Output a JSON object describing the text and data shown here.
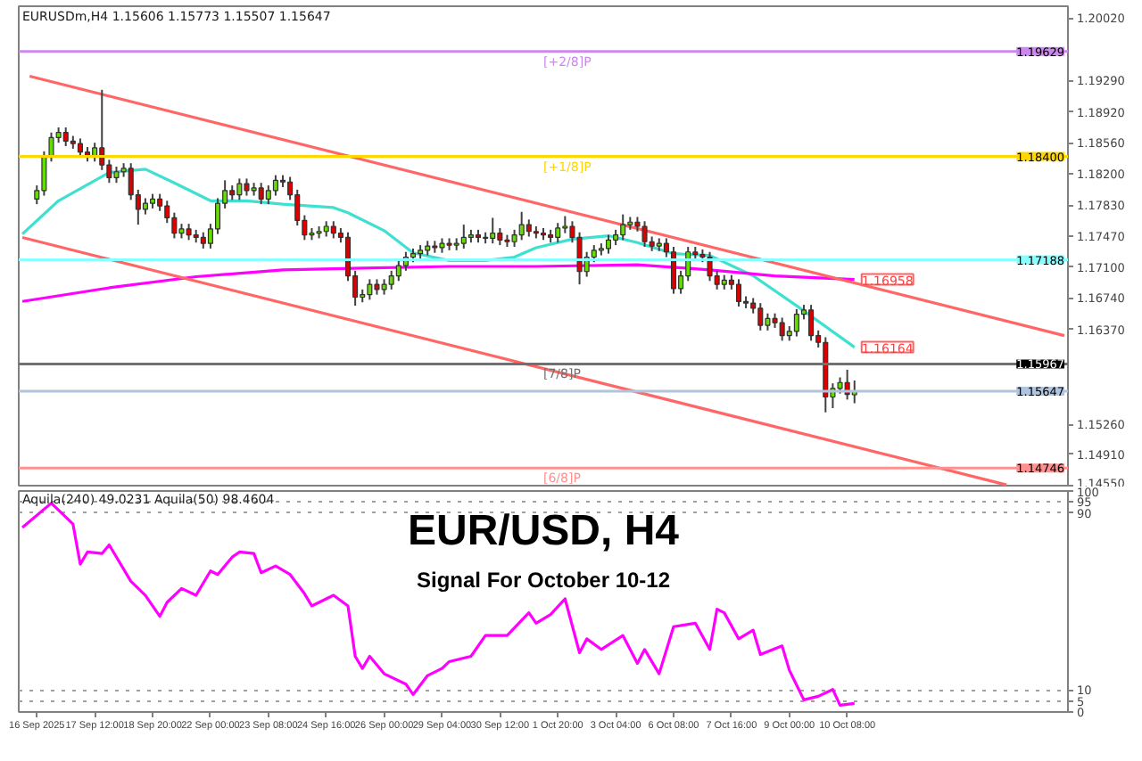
{
  "chart_data": [
    {
      "type": "candlestick",
      "title": "EURUSDm,H4 1.15606 1.15773 1.15507 1.15647",
      "categories": [
        null,
        null,
        null,
        null,
        null,
        null,
        null,
        null,
        null,
        null,
        null,
        null,
        null,
        null,
        null,
        null,
        null,
        null,
        null,
        null,
        null,
        null,
        null,
        null,
        null,
        null,
        null,
        null,
        null,
        null,
        null,
        null,
        null,
        null,
        null,
        null,
        null,
        null,
        null,
        null,
        null,
        null,
        null,
        null,
        null,
        null,
        null,
        null,
        null,
        null,
        null,
        null,
        null,
        null,
        null,
        null,
        null,
        null,
        null,
        null,
        null,
        null,
        null,
        null,
        null,
        null,
        null,
        null,
        null,
        null,
        null,
        null,
        null,
        null,
        null,
        null,
        null,
        null,
        null,
        null,
        null,
        null,
        null,
        null,
        null,
        null,
        null,
        null,
        null,
        null,
        null,
        null,
        null,
        null,
        null,
        null,
        null,
        null,
        null,
        null,
        null,
        null,
        null,
        null,
        null,
        null,
        null,
        null,
        null,
        null,
        null,
        null,
        null,
        null,
        null,
        null,
        null,
        null,
        null,
        null,
        null,
        null,
        null,
        null,
        null,
        null,
        null,
        null,
        null,
        null,
        null,
        null,
        null,
        null,
        null,
        null,
        null,
        null,
        null,
        null,
        null,
        null,
        null,
        null,
        null
      ],
      "ohlc": [
        null,
        null,
        [
          1.179,
          1.1806,
          1.1784,
          1.18
        ],
        [
          1.18,
          1.1846,
          1.1794,
          1.184
        ],
        [
          1.184,
          1.1868,
          1.1834,
          1.1862
        ],
        [
          1.1862,
          1.1874,
          1.1856,
          1.1868
        ],
        [
          1.1868,
          1.1874,
          1.1852,
          1.1858
        ],
        [
          1.1858,
          1.1864,
          1.1849,
          1.1855
        ],
        [
          1.1855,
          1.1861,
          1.1839,
          1.1845
        ],
        [
          1.1845,
          1.1851,
          1.1834,
          1.184
        ],
        [
          1.184,
          1.1856,
          1.1834,
          1.185
        ],
        [
          1.185,
          1.1918,
          1.1824,
          1.183
        ],
        [
          1.183,
          1.1836,
          1.1809,
          1.1815
        ],
        [
          1.1815,
          1.1828,
          1.1809,
          1.1822
        ],
        [
          1.1822,
          1.1832,
          1.1816,
          1.1826
        ],
        [
          1.1826,
          1.1832,
          1.1789,
          1.1795
        ],
        [
          1.1795,
          1.1801,
          1.176,
          1.1778
        ],
        [
          1.1778,
          1.1791,
          1.1772,
          1.1785
        ],
        [
          1.1785,
          1.1796,
          1.1779,
          1.179
        ],
        [
          1.179,
          1.1796,
          1.1776,
          1.1782
        ],
        [
          1.1782,
          1.1788,
          1.1762,
          1.1768
        ],
        [
          1.1768,
          1.1774,
          1.1744,
          1.175
        ],
        [
          1.175,
          1.1761,
          1.1744,
          1.1755
        ],
        [
          1.1755,
          1.1761,
          1.1742,
          1.1748
        ],
        [
          1.1748,
          1.1754,
          1.1739,
          1.1745
        ],
        [
          1.1745,
          1.1751,
          1.1732,
          1.1738
        ],
        [
          1.1738,
          1.1761,
          1.1732,
          1.1755
        ],
        [
          1.1755,
          1.1791,
          1.1749,
          1.1785
        ],
        [
          1.1785,
          1.1812,
          1.1779,
          1.18
        ],
        [
          1.18,
          1.1806,
          1.1789,
          1.1795
        ],
        [
          1.1795,
          1.1814,
          1.1789,
          1.1808
        ],
        [
          1.1808,
          1.1814,
          1.1794,
          1.18
        ],
        [
          1.18,
          1.1809,
          1.1794,
          1.1803
        ],
        [
          1.1803,
          1.1809,
          1.1784,
          1.179
        ],
        [
          1.179,
          1.1806,
          1.1784,
          1.18
        ],
        [
          1.18,
          1.1818,
          1.1794,
          1.1812
        ],
        [
          1.1812,
          1.1818,
          1.1804,
          1.181
        ],
        [
          1.181,
          1.1816,
          1.1789,
          1.1795
        ],
        [
          1.1795,
          1.1801,
          1.1759,
          1.1765
        ],
        [
          1.1765,
          1.1771,
          1.1742,
          1.1748
        ],
        [
          1.1748,
          1.1756,
          1.1742,
          1.175
        ],
        [
          1.175,
          1.1758,
          1.1744,
          1.1752
        ],
        [
          1.1752,
          1.1764,
          1.1746,
          1.1758
        ],
        [
          1.1758,
          1.1764,
          1.1744,
          1.175
        ],
        [
          1.175,
          1.1756,
          1.1739,
          1.1745
        ],
        [
          1.1745,
          1.1751,
          1.1694,
          1.17
        ],
        [
          1.17,
          1.1706,
          1.1665,
          1.1675
        ],
        [
          1.1675,
          1.1684,
          1.1669,
          1.1678
        ],
        [
          1.1678,
          1.1696,
          1.1672,
          1.169
        ],
        [
          1.169,
          1.1696,
          1.1678,
          1.1684
        ],
        [
          1.1684,
          1.1696,
          1.1678,
          1.169
        ],
        [
          1.169,
          1.1706,
          1.1684,
          1.17
        ],
        [
          1.17,
          1.1718,
          1.1694,
          1.1712
        ],
        [
          1.1712,
          1.1728,
          1.1706,
          1.1722
        ],
        [
          1.1722,
          1.1732,
          1.1716,
          1.1726
        ],
        [
          1.1726,
          1.1736,
          1.172,
          1.173
        ],
        [
          1.173,
          1.1741,
          1.1724,
          1.1735
        ],
        [
          1.1735,
          1.1741,
          1.1727,
          1.1733
        ],
        [
          1.1733,
          1.1744,
          1.1727,
          1.1738
        ],
        [
          1.1738,
          1.1744,
          1.173,
          1.1736
        ],
        [
          1.1736,
          1.1744,
          1.173,
          1.1738
        ],
        [
          1.1738,
          1.176,
          1.1732,
          1.1745
        ],
        [
          1.1745,
          1.1754,
          1.1739,
          1.1748
        ],
        [
          1.1748,
          1.1754,
          1.1739,
          1.1745
        ],
        [
          1.1745,
          1.1751,
          1.1738,
          1.1744
        ],
        [
          1.1744,
          1.1768,
          1.1738,
          1.175
        ],
        [
          1.175,
          1.1756,
          1.1736,
          1.1742
        ],
        [
          1.1742,
          1.1748,
          1.1734,
          1.174
        ],
        [
          1.174,
          1.1754,
          1.1734,
          1.1748
        ],
        [
          1.1748,
          1.1775,
          1.1742,
          1.176
        ],
        [
          1.176,
          1.1766,
          1.1746,
          1.1752
        ],
        [
          1.1752,
          1.1758,
          1.1744,
          1.175
        ],
        [
          1.175,
          1.1756,
          1.1742,
          1.1748
        ],
        [
          1.1748,
          1.1754,
          1.1739,
          1.1745
        ],
        [
          1.1745,
          1.1762,
          1.1739,
          1.1756
        ],
        [
          1.1756,
          1.177,
          1.175,
          1.1758
        ],
        [
          1.1758,
          1.1764,
          1.1739,
          1.1745
        ],
        [
          1.1745,
          1.1751,
          1.169,
          1.1705
        ],
        [
          1.1705,
          1.1728,
          1.1699,
          1.1722
        ],
        [
          1.1722,
          1.1736,
          1.1716,
          1.173
        ],
        [
          1.173,
          1.1738,
          1.1724,
          1.1732
        ],
        [
          1.1732,
          1.1748,
          1.1726,
          1.1742
        ],
        [
          1.1742,
          1.1754,
          1.1736,
          1.1748
        ],
        [
          1.1748,
          1.1772,
          1.1742,
          1.176
        ],
        [
          1.176,
          1.1769,
          1.1754,
          1.1763
        ],
        [
          1.1763,
          1.1769,
          1.1752,
          1.1758
        ],
        [
          1.1758,
          1.1764,
          1.1734,
          1.174
        ],
        [
          1.174,
          1.1746,
          1.1729,
          1.1735
        ],
        [
          1.1735,
          1.1744,
          1.1729,
          1.1738
        ],
        [
          1.1738,
          1.1744,
          1.1722,
          1.1728
        ],
        [
          1.1728,
          1.1734,
          1.1679,
          1.1685
        ],
        [
          1.1685,
          1.1706,
          1.1679,
          1.17
        ],
        [
          1.17,
          1.1734,
          1.1694,
          1.1728
        ],
        [
          1.1728,
          1.1734,
          1.1719,
          1.1725
        ],
        [
          1.1725,
          1.1731,
          1.1716,
          1.1722
        ],
        [
          1.1722,
          1.1728,
          1.1694,
          1.17
        ],
        [
          1.17,
          1.1706,
          1.1684,
          1.169
        ],
        [
          1.169,
          1.1701,
          1.1684,
          1.1695
        ],
        [
          1.1695,
          1.1701,
          1.1684,
          1.169
        ],
        [
          1.169,
          1.1696,
          1.1664,
          1.167
        ],
        [
          1.167,
          1.1676,
          1.1662,
          1.1668
        ],
        [
          1.1668,
          1.1674,
          1.1656,
          1.1662
        ],
        [
          1.1662,
          1.1668,
          1.1636,
          1.1642
        ],
        [
          1.1642,
          1.1656,
          1.1636,
          1.165
        ],
        [
          1.165,
          1.1656,
          1.1639,
          1.1645
        ],
        [
          1.1645,
          1.1651,
          1.1624,
          1.163
        ],
        [
          1.163,
          1.1641,
          1.1624,
          1.1635
        ],
        [
          1.1635,
          1.1661,
          1.1629,
          1.1655
        ],
        [
          1.1655,
          1.1666,
          1.1649,
          1.166
        ],
        [
          1.166,
          1.1666,
          1.1624,
          1.163
        ],
        [
          1.163,
          1.1636,
          1.1616,
          1.1622
        ],
        [
          1.1622,
          1.1628,
          1.154,
          1.1558
        ],
        [
          1.1558,
          1.1574,
          1.1545,
          1.1568
        ],
        [
          1.1568,
          1.1581,
          1.1562,
          1.1575
        ],
        [
          1.1575,
          1.159,
          1.1555,
          1.1561
        ],
        [
          1.15606,
          1.15773,
          1.15507,
          1.15647
        ],
        null,
        null,
        null,
        null,
        null,
        null,
        null,
        null,
        null,
        null,
        null,
        null,
        null,
        null,
        null,
        null,
        null,
        null,
        null,
        null,
        null,
        null,
        null,
        null,
        null,
        null,
        null,
        null,
        null
      ],
      "colors": [
        null,
        null,
        "#66dd00",
        "#66dd00",
        "#66dd00",
        "#66dd00",
        "#dd0000",
        "#dd0000",
        "#dd0000",
        "#dd0000",
        "#66dd00",
        "#dd0000",
        "#dd0000",
        "#66dd00",
        "#66dd00",
        "#dd0000",
        "#dd0000",
        "#66dd00",
        "#66dd00",
        "#dd0000",
        "#dd0000",
        "#dd0000",
        "#66dd00",
        "#dd0000",
        "#dd0000",
        "#dd0000",
        "#66dd00",
        "#66dd00",
        "#66dd00",
        "#dd0000",
        "#66dd00",
        "#dd0000",
        "#66dd00",
        "#dd0000",
        "#66dd00",
        "#66dd00",
        "#dd0000",
        "#dd0000",
        "#dd0000",
        "#dd0000",
        "#66dd00",
        "#66dd00",
        "#66dd00",
        "#dd0000",
        "#dd0000",
        "#dd0000",
        "#dd0000",
        "#66dd00",
        "#66dd00",
        "#dd0000",
        "#66dd00",
        "#66dd00",
        "#66dd00",
        "#66dd00",
        "#66dd00",
        "#66dd00",
        "#66dd00",
        "#dd0000",
        "#66dd00",
        "#dd0000",
        "#66dd00",
        "#66dd00",
        "#66dd00",
        "#dd0000",
        "#dd0000",
        "#66dd00",
        "#dd0000",
        "#dd0000",
        "#66dd00",
        "#66dd00",
        "#dd0000",
        "#dd0000",
        "#dd0000",
        "#dd0000",
        "#66dd00",
        "#66dd00",
        "#dd0000",
        "#dd0000",
        "#66dd00",
        "#66dd00",
        "#66dd00",
        "#66dd00",
        "#66dd00",
        "#66dd00",
        "#66dd00",
        "#dd0000",
        "#dd0000",
        "#dd0000",
        "#66dd00",
        "#dd0000",
        "#dd0000",
        "#66dd00",
        "#66dd00",
        "#dd0000",
        "#dd0000",
        "#dd0000",
        "#dd0000",
        "#66dd00",
        "#dd0000",
        "#dd0000",
        "#dd0000",
        "#dd0000",
        "#dd0000",
        "#66dd00",
        "#dd0000",
        "#dd0000",
        "#66dd00",
        "#66dd00",
        "#66dd00",
        "#dd0000",
        "#dd0000",
        "#dd0000",
        "#66dd00",
        "#66dd00",
        "#dd0000",
        "#66dd00",
        null,
        null,
        null,
        null,
        null,
        null,
        null,
        null,
        null,
        null,
        null,
        null,
        null,
        null,
        null,
        null,
        null,
        null,
        null,
        null,
        null,
        null,
        null,
        null,
        null,
        null,
        null,
        null,
        null
      ],
      "series": [
        {
          "type": "line",
          "name": "1.16164",
          "color": "#40e0d0",
          "values": [
            1.1749,
            null,
            null,
            null,
            null,
            1.1788,
            null,
            null,
            null,
            null,
            null,
            null,
            1.1821,
            null,
            null,
            null,
            null,
            1.1825,
            null,
            null,
            null,
            1.1809,
            null,
            null,
            null,
            null,
            1.1788,
            null,
            null,
            null,
            null,
            1.1788,
            null,
            null,
            null,
            null,
            1.1784,
            null,
            null,
            null,
            null,
            null,
            null,
            1.178,
            null,
            1.1774,
            null,
            null,
            null,
            null,
            1.1753,
            null,
            null,
            null,
            1.1727,
            null,
            null,
            null,
            null,
            1.1718,
            null,
            null,
            null,
            null,
            1.1718,
            null,
            null,
            null,
            1.1722,
            null,
            null,
            1.1733,
            null,
            null,
            null,
            null,
            1.1743,
            null,
            null,
            null,
            null,
            1.1747,
            null,
            null,
            null,
            1.1739,
            null,
            null,
            null,
            null,
            1.1726,
            null,
            null,
            null,
            null,
            1.1724,
            null,
            null,
            null,
            null,
            null,
            1.17,
            null,
            null,
            null,
            null,
            null,
            1.1665,
            null,
            null,
            null,
            null,
            null,
            null,
            null,
            1.16164,
            null,
            null,
            null,
            null,
            null,
            null,
            null,
            null,
            null,
            null,
            null,
            null,
            null,
            null,
            null,
            null,
            null,
            null,
            null,
            null,
            null,
            null,
            null,
            null,
            null,
            null,
            null,
            null,
            null
          ]
        },
        {
          "type": "line",
          "name": "1.16958",
          "color": "#ff00ff",
          "values": [
            1.167,
            null,
            null,
            null,
            null,
            null,
            null,
            null,
            null,
            null,
            null,
            null,
            1.1686,
            null,
            null,
            null,
            null,
            null,
            null,
            null,
            null,
            null,
            null,
            null,
            1.1699,
            null,
            null,
            null,
            null,
            null,
            null,
            null,
            null,
            null,
            null,
            null,
            1.1707,
            null,
            null,
            null,
            null,
            null,
            null,
            null,
            null,
            null,
            null,
            1.1709,
            null,
            null,
            null,
            null,
            null,
            null,
            null,
            null,
            null,
            null,
            null,
            1.1711,
            null,
            null,
            null,
            null,
            null,
            null,
            null,
            null,
            null,
            null,
            null,
            1.1711,
            null,
            null,
            null,
            null,
            null,
            null,
            null,
            null,
            null,
            null,
            null,
            null,
            null,
            1.1713,
            null,
            null,
            null,
            null,
            null,
            null,
            null,
            null,
            null,
            1.1707,
            null,
            null,
            null,
            null,
            null,
            null,
            null,
            null,
            1.17,
            null,
            null,
            null,
            null,
            null,
            null,
            null,
            null,
            null,
            null,
            1.16958,
            null,
            null,
            null,
            null,
            null,
            null,
            null,
            null,
            null,
            null,
            null,
            null,
            null,
            null,
            null,
            null,
            null,
            null,
            null,
            null,
            null,
            null,
            null,
            null,
            null,
            null,
            null,
            null,
            null
          ]
        },
        {
          "type": "line",
          "color": "#ff6666",
          "values": [
            null,
            1.1934,
            null,
            null,
            null,
            null,
            null,
            null,
            null,
            null,
            null,
            null,
            null,
            null,
            null,
            null,
            null,
            null,
            null,
            null,
            null,
            null,
            null,
            null,
            null,
            null,
            null,
            null,
            null,
            null,
            null,
            null,
            null,
            null,
            null,
            null,
            null,
            null,
            null,
            null,
            null,
            null,
            null,
            null,
            null,
            null,
            null,
            null,
            null,
            null,
            null,
            null,
            null,
            null,
            null,
            null,
            null,
            null,
            null,
            null,
            null,
            null,
            null,
            null,
            null,
            null,
            null,
            null,
            null,
            null,
            null,
            null,
            null,
            null,
            null,
            null,
            null,
            null,
            null,
            null,
            null,
            null,
            null,
            null,
            null,
            null,
            null,
            null,
            null,
            null,
            null,
            null,
            null,
            null,
            null,
            null,
            null,
            null,
            null,
            null,
            null,
            null,
            null,
            null,
            null,
            null,
            null,
            null,
            null,
            null,
            null,
            null,
            null,
            null,
            null,
            null,
            null,
            null,
            null,
            null,
            null,
            null,
            null,
            null,
            null,
            null,
            null,
            null,
            null,
            null,
            null,
            null,
            null,
            null,
            null,
            null,
            null,
            null,
            null,
            null,
            null,
            null,
            null,
            null,
            1.163
          ]
        },
        {
          "type": "line",
          "color": "#ff6666",
          "values": [
            1.1745,
            null,
            null,
            null,
            null,
            null,
            null,
            null,
            null,
            null,
            null,
            null,
            null,
            null,
            null,
            null,
            null,
            null,
            null,
            null,
            null,
            null,
            null,
            null,
            null,
            null,
            null,
            null,
            null,
            null,
            null,
            null,
            null,
            null,
            null,
            null,
            null,
            null,
            null,
            null,
            null,
            null,
            null,
            null,
            null,
            null,
            null,
            null,
            null,
            null,
            null,
            null,
            null,
            null,
            null,
            null,
            null,
            null,
            null,
            null,
            null,
            null,
            null,
            null,
            null,
            null,
            null,
            null,
            null,
            null,
            null,
            null,
            null,
            null,
            null,
            null,
            null,
            null,
            null,
            null,
            null,
            null,
            null,
            null,
            null,
            null,
            null,
            null,
            null,
            null,
            null,
            null,
            null,
            null,
            null,
            null,
            null,
            null,
            null,
            null,
            null,
            null,
            null,
            null,
            null,
            null,
            null,
            null,
            null,
            null,
            null,
            null,
            null,
            null,
            null,
            null,
            null,
            null,
            null,
            null,
            null,
            null,
            null,
            null,
            null,
            null,
            null,
            null,
            null,
            null,
            null,
            null,
            null,
            null,
            null,
            null,
            1.1455,
            null,
            null,
            null,
            null,
            null,
            null,
            null,
            null
          ]
        }
      ],
      "ylim": [
        1.1452,
        1.2016
      ],
      "yticks": [
        {
          "value": 1.2002,
          "label": "1.20020"
        },
        {
          "value": 1.1929,
          "label": "1.19290"
        },
        {
          "value": 1.1892,
          "label": "1.18920"
        },
        {
          "value": 1.1856,
          "label": "1.18560"
        },
        {
          "value": 1.182,
          "label": "1.18200"
        },
        {
          "value": 1.1783,
          "label": "1.17830"
        },
        {
          "value": 1.1747,
          "label": "1.17470"
        },
        {
          "value": 1.171,
          "label": "1.17100"
        },
        {
          "value": 1.1674,
          "label": "1.16740"
        },
        {
          "value": 1.1637,
          "label": "1.16370"
        },
        {
          "value": 1.1526,
          "label": "1.15260"
        },
        {
          "value": 1.1491,
          "label": "1.14910"
        },
        {
          "value": 1.1455,
          "label": "1.14550"
        }
      ],
      "tick_labels": "y",
      "ref_lines": [
        {
          "axis": "y",
          "value": 1.19629,
          "label": "1.19629",
          "color": "#cc88ee"
        },
        {
          "axis": "y",
          "value": 1.184,
          "label": "1.18400",
          "color": "#ffd700"
        },
        {
          "axis": "y",
          "value": 1.17188,
          "label": "1.17188",
          "color": "#88ffff"
        },
        {
          "axis": "y",
          "value": 1.15967,
          "label": "1.15967",
          "color": "#707070"
        },
        {
          "axis": "y",
          "value": 1.15647,
          "label": "1.15647",
          "color": "#b0c4de"
        },
        {
          "axis": "y",
          "value": 1.14746,
          "label": "1.14746",
          "color": "#ff9090"
        }
      ],
      "annotations": [
        {
          "text": "[+2/8]P",
          "y": 1.19629
        },
        {
          "text": "[+1/8]P",
          "y": 1.184
        },
        {
          "text": "[7/8]P",
          "y": 1.15967
        },
        {
          "text": "[6/8]P",
          "y": 1.14746
        }
      ]
    },
    {
      "type": "line",
      "title": "EUR/USD, H4",
      "subtitle": "Signal For October 10-12",
      "annotations": [
        "Aquila(240) 49.0231 Aquila(50) 98.4604"
      ],
      "categories": [
        null,
        null,
        "16 Sep 2025",
        null,
        null,
        null,
        null,
        null,
        null,
        null,
        "17 Sep 12:00",
        null,
        null,
        null,
        null,
        null,
        null,
        null,
        "18 Sep 20:00",
        null,
        null,
        null,
        null,
        null,
        null,
        null,
        "22 Sep 00:00",
        null,
        null,
        null,
        null,
        null,
        null,
        null,
        "23 Sep 08:00",
        null,
        null,
        null,
        null,
        null,
        null,
        null,
        "24 Sep 16:00",
        null,
        null,
        null,
        null,
        null,
        null,
        null,
        "26 Sep 00:00",
        null,
        null,
        null,
        null,
        null,
        null,
        null,
        "29 Sep 04:00",
        null,
        null,
        null,
        null,
        null,
        null,
        null,
        "30 Sep 12:00",
        null,
        null,
        null,
        null,
        null,
        null,
        null,
        "1 Oct 20:00",
        null,
        null,
        null,
        null,
        null,
        null,
        null,
        "3 Oct 04:00",
        null,
        null,
        null,
        null,
        null,
        null,
        null,
        "6 Oct 08:00",
        null,
        null,
        null,
        null,
        null,
        null,
        null,
        "7 Oct 16:00",
        null,
        null,
        null,
        null,
        null,
        null,
        null,
        "9 Oct 00:00",
        null,
        null,
        null,
        null,
        null,
        null,
        null,
        "10 Oct 08:00",
        null,
        null,
        null,
        null,
        null,
        null,
        null,
        null,
        null,
        null,
        null,
        null,
        null,
        null,
        null,
        null,
        null,
        null,
        null,
        null,
        null,
        null,
        null,
        null,
        null,
        null,
        null,
        null,
        null,
        null
      ],
      "series": [
        {
          "color": "#ff00ff",
          "values": [
            83.5,
            null,
            null,
            null,
            94.5,
            null,
            null,
            85.0,
            66.9,
            72.4,
            null,
            71.7,
            75.6,
            null,
            null,
            59.1,
            null,
            52.8,
            null,
            43.3,
            49.6,
            null,
            55.9,
            null,
            52.8,
            null,
            63.8,
            62.2,
            null,
            70.1,
            72.4,
            null,
            71.7,
            63.0,
            null,
            66.1,
            null,
            62.2,
            null,
            53.5,
            48.0,
            null,
            null,
            52.8,
            null,
            48.0,
            25.2,
            19.7,
            25.2,
            null,
            17.3,
            null,
            null,
            12.6,
            7.9,
            null,
            16.5,
            null,
            19.7,
            22.8,
            null,
            null,
            25.2,
            null,
            34.6,
            null,
            null,
            34.6,
            null,
            null,
            44.9,
            40.2,
            null,
            44.1,
            null,
            51.2,
            null,
            26.8,
            33.1,
            null,
            28.3,
            null,
            null,
            34.6,
            null,
            22.0,
            28.3,
            null,
            17.3,
            null,
            38.6,
            null,
            null,
            40.2,
            null,
            28.3,
            46.5,
            44.9,
            null,
            33.1,
            null,
            37.0,
            26.0,
            null,
            null,
            29.9,
            18.9,
            null,
            5.5,
            null,
            7.1,
            null,
            10.2,
            3.1,
            null,
            3.9,
            null,
            null,
            null,
            null,
            null,
            null,
            null,
            null,
            null,
            null,
            null,
            null,
            null,
            null,
            null,
            null,
            null,
            null,
            null,
            null,
            null,
            null,
            null,
            null,
            null,
            null,
            null,
            null,
            null
          ]
        }
      ],
      "ylim": [
        0,
        100
      ],
      "yticks": [
        0,
        5,
        10,
        90,
        95,
        100
      ],
      "grid": "y"
    }
  ]
}
